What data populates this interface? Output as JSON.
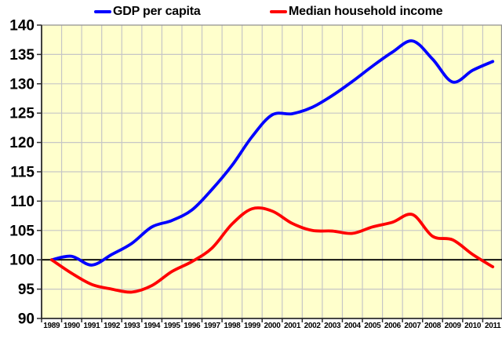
{
  "page": {
    "background": "#ffffff",
    "plot_background": "#FFFFCC",
    "gridline_color": "#C6C6C6",
    "axis_color": "#2b2b2b",
    "border_color": "#909090",
    "baseline_color": "#000000"
  },
  "legend": {
    "items": [
      {
        "label": "GDP per capita",
        "color": "#0000FF"
      },
      {
        "label": "Median household income",
        "color": "#FF0000"
      }
    ]
  },
  "chart_data": {
    "type": "line",
    "smoothed": true,
    "title": "",
    "xlabel": "",
    "ylabel": "",
    "x": [
      1989,
      1990,
      1991,
      1992,
      1993,
      1994,
      1995,
      1996,
      1997,
      1998,
      1999,
      2000,
      2001,
      2002,
      2003,
      2004,
      2005,
      2006,
      2007,
      2008,
      2009,
      2010,
      2011
    ],
    "series": [
      {
        "name": "GDP per capita",
        "color": "#0000FF",
        "values": [
          100,
          100.6,
          99.1,
          100.9,
          102.8,
          105.6,
          106.7,
          108.5,
          112.0,
          116.1,
          121.0,
          124.7,
          124.9,
          126.0,
          128.0,
          130.4,
          133.0,
          135.4,
          137.3,
          134.2,
          130.3,
          132.3,
          133.8
        ]
      },
      {
        "name": "Median household income",
        "color": "#FF0000",
        "values": [
          100,
          97.7,
          95.8,
          95.0,
          94.5,
          95.6,
          98.0,
          99.7,
          102.0,
          106.1,
          108.7,
          108.3,
          106.2,
          105.0,
          104.9,
          104.5,
          105.6,
          106.4,
          107.7,
          104.0,
          103.4,
          100.9,
          98.8
        ]
      }
    ],
    "ylim": [
      90,
      140
    ],
    "ytick_step": 5,
    "y_ticks": [
      90,
      95,
      100,
      105,
      110,
      115,
      120,
      125,
      130,
      135,
      140
    ],
    "baseline": 100,
    "grid": true,
    "legend_position": "top"
  }
}
